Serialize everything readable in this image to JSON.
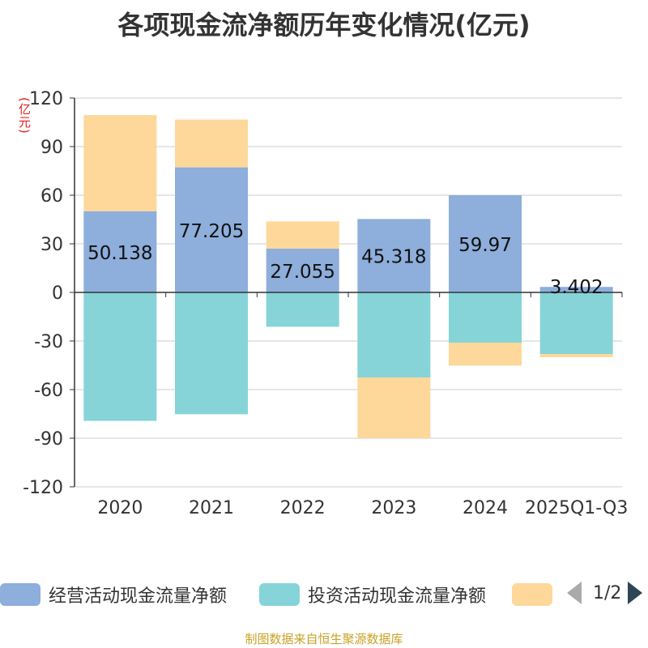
{
  "chart_data": {
    "type": "bar",
    "stacked": true,
    "title": "各项现金流净额历年变化情况(亿元)",
    "ylabel": "(亿元)",
    "ylim": [
      -120,
      120
    ],
    "yticks": [
      120,
      90,
      60,
      30,
      0,
      -30,
      -60,
      -90,
      -120
    ],
    "categories": [
      "2020",
      "2021",
      "2022",
      "2023",
      "2024",
      "2025Q1-Q3"
    ],
    "series": [
      {
        "name": "经营活动现金流量净额",
        "color": "#8eaedb",
        "values": [
          50.138,
          77.205,
          27.055,
          45.318,
          59.97,
          3.402
        ],
        "labels": [
          "50.138",
          "77.205",
          "27.055",
          "45.318",
          "59.97",
          "3.402"
        ]
      },
      {
        "name": "投资活动现金流量净额",
        "color": "#86d4d8",
        "values": [
          -79.3,
          -75.2,
          -21.2,
          -52.5,
          -31.0,
          -38.0
        ]
      },
      {
        "name": "",
        "color": "#fdd89a",
        "values": [
          59.3,
          29.5,
          16.8,
          -37.5,
          -14.2,
          -2.0
        ]
      }
    ],
    "legend_pager": "1/2",
    "source": "制图数据来自恒生聚源数据库"
  }
}
